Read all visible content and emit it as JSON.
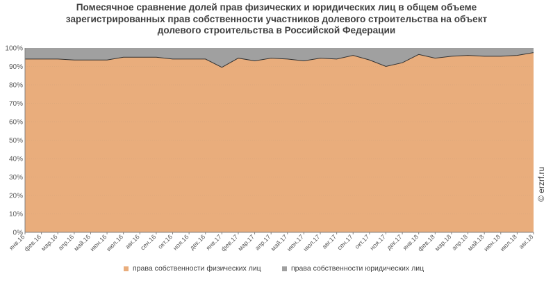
{
  "chart_data": {
    "type": "area",
    "stacked": true,
    "percent": true,
    "title_lines": [
      "Помесячное сравнение долей прав физических и юридических лиц в общем объеме",
      "зарегистрированных прав собственности участников долевого строительства на объект",
      "долевого строительства в Российской Федерации"
    ],
    "categories": [
      "янв.16",
      "фев.16",
      "мар.16",
      "апр.16",
      "май.16",
      "июн.16",
      "июл.16",
      "авг.16",
      "сен.16",
      "окт.16",
      "ноя.16",
      "дек.16",
      "янв.17",
      "фев.17",
      "мар.17",
      "апр.17",
      "май.17",
      "июн.17",
      "июл.17",
      "авг.17",
      "сен.17",
      "окт.17",
      "ноя.17",
      "дек.17",
      "янв.18",
      "фев.18",
      "мар.18",
      "апр.18",
      "май.18",
      "июн.18",
      "июл.18",
      "авг.18"
    ],
    "y_ticks": [
      "0%",
      "10%",
      "20%",
      "30%",
      "40%",
      "50%",
      "60%",
      "70%",
      "80%",
      "90%",
      "100%"
    ],
    "ylim": [
      0,
      100
    ],
    "series": [
      {
        "name": "права собственности физических лиц",
        "color": "#e9ad7c",
        "values": [
          94.0,
          94.0,
          94.0,
          93.5,
          93.5,
          93.5,
          95.0,
          95.0,
          95.0,
          94.0,
          94.0,
          94.0,
          89.5,
          94.5,
          93.0,
          94.5,
          94.0,
          93.0,
          94.5,
          94.0,
          96.0,
          93.5,
          90.0,
          92.0,
          96.5,
          94.5,
          95.5,
          96.0,
          95.5,
          95.5,
          96.0,
          97.5
        ]
      },
      {
        "name": "права собственности юридических лиц",
        "color": "#a0a0a0",
        "values": [
          6.0,
          6.0,
          6.0,
          6.5,
          6.5,
          6.5,
          5.0,
          5.0,
          5.0,
          6.0,
          6.0,
          6.0,
          10.5,
          5.5,
          7.0,
          5.5,
          6.0,
          7.0,
          5.5,
          6.0,
          4.0,
          6.5,
          10.0,
          8.0,
          3.5,
          5.5,
          4.5,
          4.0,
          4.5,
          4.5,
          4.0,
          2.5
        ]
      }
    ],
    "grid": true,
    "legend_position": "bottom"
  },
  "watermark": "© erzrf.ru"
}
